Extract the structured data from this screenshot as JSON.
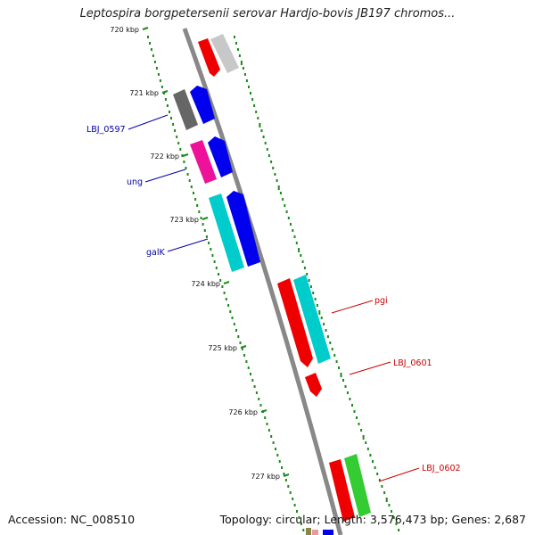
{
  "title": "Leptospira borgpetersenii serovar Hardjo-bovis JB197 chromos...",
  "footer": {
    "accession": "Accession: NC_008510",
    "topology": "Topology: circular; Length: 3,576,473 bp; Genes: 2,687"
  },
  "ruler": {
    "ticks": [
      "720 kbp",
      "721 kbp",
      "722 kbp",
      "723 kbp",
      "724 kbp",
      "725 kbp",
      "726 kbp",
      "727 kbp"
    ]
  },
  "genes": [
    {
      "label": "LBJ_0597",
      "strand": "forward",
      "color": "#0000ee",
      "label_color": "#0000aa"
    },
    {
      "label": "ung",
      "strand": "forward",
      "color": "#0000ee",
      "label_color": "#0000aa"
    },
    {
      "label": "galK",
      "strand": "forward",
      "color": "#0000ee",
      "label_color": "#0000aa"
    },
    {
      "label": "pgi",
      "strand": "reverse",
      "color": "#ee0000",
      "label_color": "#cc0000"
    },
    {
      "label": "LBJ_0601",
      "strand": "reverse",
      "color": "#ee0000",
      "label_color": "#cc0000"
    },
    {
      "label": "LBJ_0602",
      "strand": "reverse",
      "color": "#ee0000",
      "label_color": "#cc0000"
    }
  ],
  "colors": {
    "backbone": "#888888",
    "ruler": "#1a8a1a",
    "forward_cds": "#0000ee",
    "reverse_cds": "#ee0000",
    "orf": "#00cccc",
    "gray": "#666666",
    "magenta": "#ee1199",
    "green": "#33cc33"
  }
}
